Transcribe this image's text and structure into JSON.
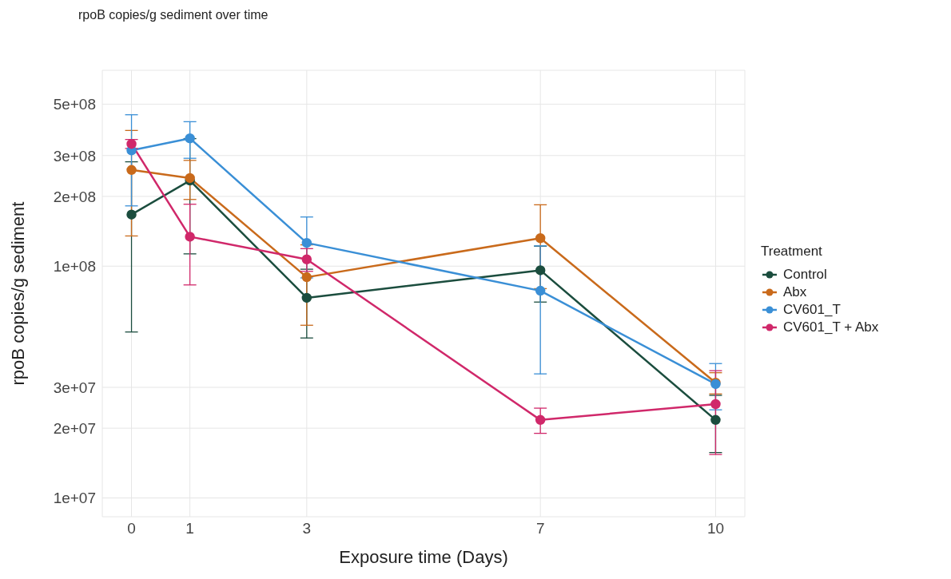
{
  "chart_data": {
    "type": "line",
    "title": "rpoB copies/g sediment over time",
    "xlabel": "Exposure time (Days)",
    "ylabel": "rpoB copies/g sediment",
    "legend_title": "Treatment",
    "x": [
      0,
      1,
      3,
      7,
      10
    ],
    "log": true,
    "xlim": [
      -0.5,
      10.5
    ],
    "xticks": [
      0,
      1,
      3,
      7,
      10
    ],
    "ylim": [
      8300000,
      700000000
    ],
    "yticks": [
      {
        "value": 10000000,
        "label": "1e+07"
      },
      {
        "value": 20000000,
        "label": "2e+07"
      },
      {
        "value": 30000000,
        "label": "3e+07"
      },
      {
        "value": 100000000,
        "label": "1e+08"
      },
      {
        "value": 200000000,
        "label": "2e+08"
      },
      {
        "value": 300000000,
        "label": "3e+08"
      },
      {
        "value": 500000000,
        "label": "5e+08"
      }
    ],
    "grid": true,
    "legend": "right",
    "marker": "circle",
    "line_style": "solid",
    "series": [
      {
        "name": "Control",
        "color": "#1b4d3e",
        "values": [
          167000000,
          234000000,
          73000000,
          96000000,
          21700000
        ],
        "errors": [
          115000000,
          121000000,
          24000000,
          26000000,
          6000000
        ]
      },
      {
        "name": "Abx",
        "color": "#c96a1b",
        "values": [
          260000000,
          240000000,
          89600000,
          132000000,
          31400000
        ],
        "errors": [
          125000000,
          46000000,
          34000000,
          52000000,
          3300000
        ]
      },
      {
        "name": "CV601_T",
        "color": "#3a8fd6",
        "values": [
          316000000,
          356000000,
          126000000,
          78300000,
          31000000
        ],
        "errors": [
          134000000,
          64000000,
          37000000,
          44000000,
          7000000
        ]
      },
      {
        "name": "CV601_T + Abx",
        "color": "#d0286a",
        "values": [
          337000000,
          134000000,
          107000000,
          21700000,
          25400000
        ],
        "errors": [
          15000000,
          51000000,
          12000000,
          2700000,
          10000000
        ]
      }
    ]
  }
}
